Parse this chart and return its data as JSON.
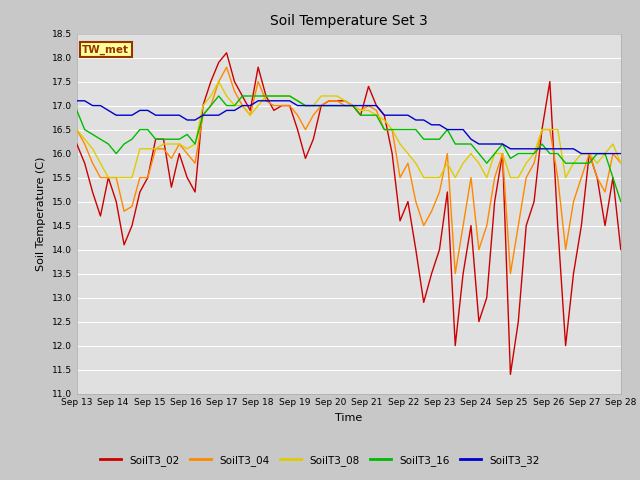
{
  "title": "Soil Temperature Set 3",
  "xlabel": "Time",
  "ylabel": "Soil Temperature (C)",
  "ylim": [
    11.0,
    18.5
  ],
  "yticks": [
    11.0,
    11.5,
    12.0,
    12.5,
    13.0,
    13.5,
    14.0,
    14.5,
    15.0,
    15.5,
    16.0,
    16.5,
    17.0,
    17.5,
    18.0,
    18.5
  ],
  "fig_bg_color": "#c8c8c8",
  "plot_bg_color": "#e0e0e0",
  "annotation_text": "TW_met",
  "annotation_bg": "#ffff99",
  "annotation_edge": "#993300",
  "legend_labels": [
    "SoilT3_02",
    "SoilT3_04",
    "SoilT3_08",
    "SoilT3_16",
    "SoilT3_32"
  ],
  "line_colors": [
    "#cc0000",
    "#ff8800",
    "#ddcc00",
    "#00bb00",
    "#0000cc"
  ],
  "x_tick_labels": [
    "Sep 13",
    "Sep 14",
    "Sep 15",
    "Sep 16",
    "Sep 17",
    "Sep 18",
    "Sep 19",
    "Sep 20",
    "Sep 21",
    "Sep 22",
    "Sep 23",
    "Sep 24",
    "Sep 25",
    "Sep 26",
    "Sep 27",
    "Sep 28"
  ],
  "SoilT3_02": [
    16.2,
    15.8,
    15.2,
    14.7,
    15.5,
    15.0,
    14.1,
    14.5,
    15.2,
    15.5,
    16.3,
    16.3,
    15.3,
    16.0,
    15.5,
    15.2,
    17.0,
    17.5,
    17.9,
    18.1,
    17.5,
    17.2,
    16.9,
    17.8,
    17.2,
    16.9,
    17.0,
    17.0,
    16.5,
    15.9,
    16.3,
    17.0,
    17.1,
    17.1,
    17.1,
    17.0,
    16.8,
    17.4,
    17.0,
    16.8,
    16.0,
    14.6,
    15.0,
    14.0,
    12.9,
    13.5,
    14.0,
    15.2,
    12.0,
    13.5,
    14.5,
    12.5,
    13.0,
    15.0,
    16.0,
    11.4,
    12.5,
    14.5,
    15.0,
    16.5,
    17.5,
    14.5,
    12.0,
    13.5,
    14.5,
    16.0,
    15.5,
    14.5,
    15.5,
    14.0
  ],
  "SoilT3_04": [
    16.5,
    16.2,
    15.8,
    15.5,
    15.5,
    15.5,
    14.8,
    14.9,
    15.5,
    15.5,
    16.1,
    16.1,
    15.9,
    16.2,
    16.0,
    15.8,
    16.8,
    17.0,
    17.5,
    17.8,
    17.3,
    17.0,
    16.8,
    17.5,
    17.1,
    17.0,
    17.0,
    17.0,
    16.8,
    16.5,
    16.8,
    17.0,
    17.1,
    17.1,
    17.0,
    17.0,
    16.9,
    17.0,
    16.9,
    16.5,
    16.5,
    15.5,
    15.8,
    15.0,
    14.5,
    14.8,
    15.2,
    16.0,
    13.5,
    14.5,
    15.5,
    14.0,
    14.5,
    15.5,
    16.0,
    13.5,
    14.5,
    15.5,
    15.8,
    16.5,
    16.5,
    15.5,
    14.0,
    15.0,
    15.5,
    16.0,
    15.5,
    15.2,
    16.0,
    15.8
  ],
  "SoilT3_08": [
    16.5,
    16.3,
    16.1,
    15.8,
    15.5,
    15.5,
    15.5,
    15.5,
    16.1,
    16.1,
    16.1,
    16.2,
    16.2,
    16.2,
    16.1,
    16.2,
    17.0,
    17.2,
    17.5,
    17.2,
    17.0,
    17.0,
    16.8,
    17.0,
    17.2,
    17.2,
    17.2,
    17.2,
    17.1,
    17.0,
    17.0,
    17.2,
    17.2,
    17.2,
    17.1,
    17.0,
    16.9,
    16.9,
    16.8,
    16.7,
    16.5,
    16.2,
    16.0,
    15.8,
    15.5,
    15.5,
    15.5,
    15.8,
    15.5,
    15.8,
    16.0,
    15.8,
    15.5,
    16.0,
    16.0,
    15.5,
    15.5,
    15.8,
    16.0,
    16.5,
    16.5,
    16.5,
    15.5,
    15.8,
    16.0,
    16.0,
    15.8,
    16.0,
    16.2,
    15.8
  ],
  "SoilT3_16": [
    16.9,
    16.5,
    16.4,
    16.3,
    16.2,
    16.0,
    16.2,
    16.3,
    16.5,
    16.5,
    16.3,
    16.3,
    16.3,
    16.3,
    16.4,
    16.2,
    16.8,
    17.0,
    17.2,
    17.0,
    17.0,
    17.2,
    17.2,
    17.2,
    17.2,
    17.2,
    17.2,
    17.2,
    17.1,
    17.0,
    17.0,
    17.0,
    17.0,
    17.0,
    17.0,
    17.0,
    16.8,
    16.8,
    16.8,
    16.5,
    16.5,
    16.5,
    16.5,
    16.5,
    16.3,
    16.3,
    16.3,
    16.5,
    16.2,
    16.2,
    16.2,
    16.0,
    15.8,
    16.0,
    16.2,
    15.9,
    16.0,
    16.0,
    16.0,
    16.2,
    16.0,
    16.0,
    15.8,
    15.8,
    15.8,
    15.8,
    16.0,
    16.0,
    15.5,
    15.0
  ],
  "SoilT3_32": [
    17.1,
    17.1,
    17.0,
    17.0,
    16.9,
    16.8,
    16.8,
    16.8,
    16.9,
    16.9,
    16.8,
    16.8,
    16.8,
    16.8,
    16.7,
    16.7,
    16.8,
    16.8,
    16.8,
    16.9,
    16.9,
    17.0,
    17.0,
    17.1,
    17.1,
    17.1,
    17.1,
    17.1,
    17.0,
    17.0,
    17.0,
    17.0,
    17.0,
    17.0,
    17.0,
    17.0,
    17.0,
    17.0,
    17.0,
    16.8,
    16.8,
    16.8,
    16.8,
    16.7,
    16.7,
    16.6,
    16.6,
    16.5,
    16.5,
    16.5,
    16.3,
    16.2,
    16.2,
    16.2,
    16.2,
    16.1,
    16.1,
    16.1,
    16.1,
    16.1,
    16.1,
    16.1,
    16.1,
    16.1,
    16.0,
    16.0,
    16.0,
    16.0,
    16.0,
    16.0
  ]
}
